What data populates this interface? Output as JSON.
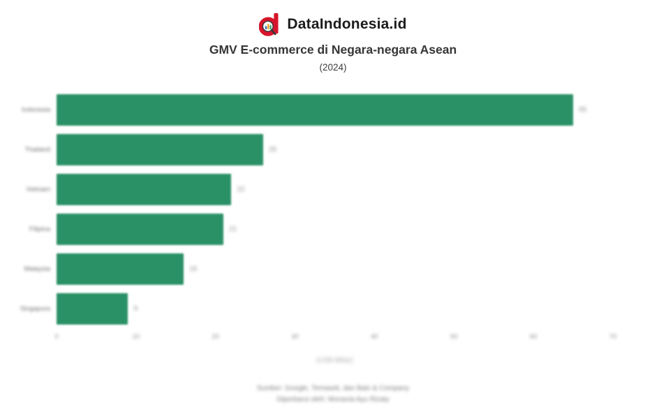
{
  "header": {
    "brand": "DataIndonesia.id",
    "title": "GMV E-commerce di Negara-negara Asean",
    "subtitle": "(2024)"
  },
  "chart_data": {
    "type": "bar",
    "orientation": "horizontal",
    "title": "GMV E-commerce di Negara-negara Asean",
    "subtitle": "(2024)",
    "categories": [
      "Indonesia",
      "Thailand",
      "Vietnam",
      "Filipina",
      "Malaysia",
      "Singapura"
    ],
    "values": [
      65,
      26,
      22,
      21,
      16,
      9
    ],
    "xlabel": "(US$ Miliar)",
    "ylabel": "",
    "xlim": [
      0,
      70
    ],
    "xticks": [
      0,
      10,
      20,
      30,
      40,
      50,
      60,
      70
    ],
    "bar_color": "#2a9166",
    "grid": false,
    "legend": false
  },
  "footer": {
    "source": "Sumber: Google, Temasek, dan Bain & Company",
    "credit": "Diperbarui oleh: Monavia Ayu Rizaty"
  },
  "icons": {
    "logo": "dataindonesia-magnifier-d-logo"
  },
  "colors": {
    "bar": "#2a9166",
    "logo_red": "#d6152c",
    "title_text": "#363636",
    "muted_text": "#8f8f8f"
  }
}
